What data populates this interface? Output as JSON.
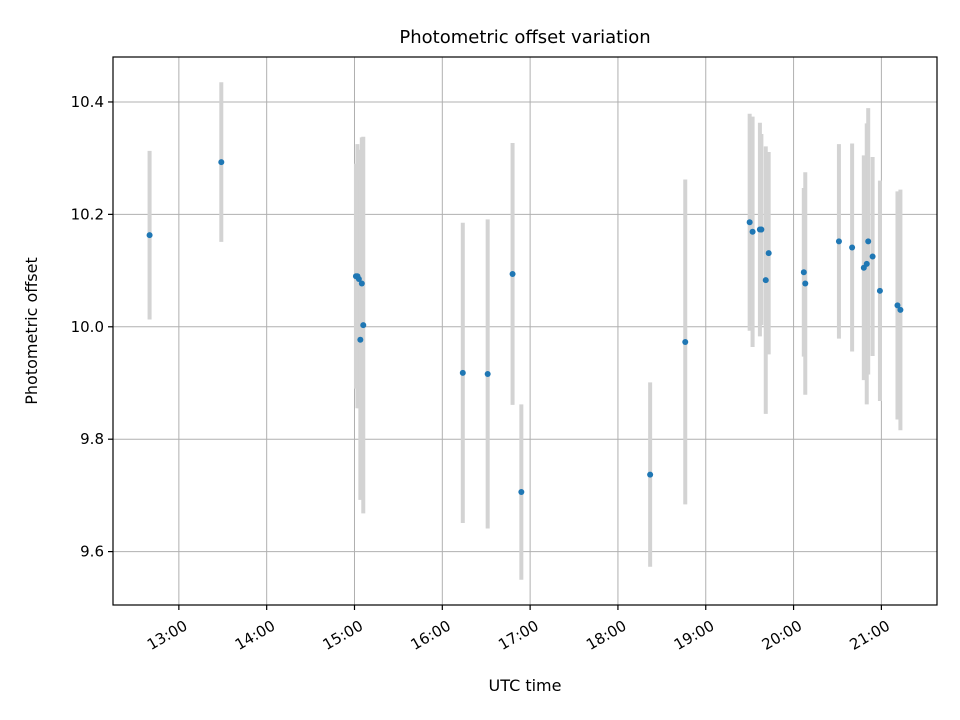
{
  "chart_data": {
    "type": "scatter",
    "title": "Photometric offset variation",
    "xlabel": "UTC time",
    "ylabel": "Photometric offset",
    "xlim": [
      "12:15",
      "21:38"
    ],
    "ylim": [
      9.505,
      10.48
    ],
    "grid": true,
    "x_ticks": [
      "13:00",
      "14:00",
      "15:00",
      "16:00",
      "17:00",
      "18:00",
      "19:00",
      "20:00",
      "21:00"
    ],
    "y_ticks": [
      9.6,
      9.8,
      10.0,
      10.2,
      10.4
    ],
    "y_tick_labels": [
      "9.6",
      "9.8",
      "10.0",
      "10.2",
      "10.4"
    ],
    "colors": {
      "point": "#1f77b4",
      "errorbar": "#d3d3d3",
      "grid": "#b0b0b0"
    },
    "series": [
      {
        "points": [
          {
            "x": "12:40",
            "y": 10.163,
            "err": 0.15
          },
          {
            "x": "13:29",
            "y": 10.293,
            "err": 0.142
          },
          {
            "x": "15:01",
            "y": 10.09,
            "err": 0.2
          },
          {
            "x": "15:02",
            "y": 10.09,
            "err": 0.235
          },
          {
            "x": "15:03",
            "y": 10.085,
            "err": 0.23
          },
          {
            "x": "15:04",
            "y": 9.977,
            "err": 0.285
          },
          {
            "x": "15:05",
            "y": 10.077,
            "err": 0.26
          },
          {
            "x": "15:06",
            "y": 10.003,
            "err": 0.335
          },
          {
            "x": "16:14",
            "y": 9.918,
            "err": 0.267
          },
          {
            "x": "16:31",
            "y": 9.916,
            "err": 0.275
          },
          {
            "x": "16:48",
            "y": 10.094,
            "err": 0.233
          },
          {
            "x": "16:54",
            "y": 9.706,
            "err": 0.156
          },
          {
            "x": "18:22",
            "y": 9.737,
            "err": 0.164
          },
          {
            "x": "18:46",
            "y": 9.973,
            "err": 0.289
          },
          {
            "x": "19:30",
            "y": 10.186,
            "err": 0.193
          },
          {
            "x": "19:32",
            "y": 10.169,
            "err": 0.205
          },
          {
            "x": "19:37",
            "y": 10.173,
            "err": 0.19
          },
          {
            "x": "19:38",
            "y": 10.173,
            "err": 0.17
          },
          {
            "x": "19:41",
            "y": 10.083,
            "err": 0.238
          },
          {
            "x": "19:43",
            "y": 10.131,
            "err": 0.18
          },
          {
            "x": "20:07",
            "y": 10.097,
            "err": 0.15
          },
          {
            "x": "20:08",
            "y": 10.077,
            "err": 0.198
          },
          {
            "x": "20:31",
            "y": 10.152,
            "err": 0.173
          },
          {
            "x": "20:40",
            "y": 10.141,
            "err": 0.185
          },
          {
            "x": "20:48",
            "y": 10.105,
            "err": 0.2
          },
          {
            "x": "20:50",
            "y": 10.112,
            "err": 0.25
          },
          {
            "x": "20:51",
            "y": 10.152,
            "err": 0.237
          },
          {
            "x": "20:54",
            "y": 10.125,
            "err": 0.177
          },
          {
            "x": "20:59",
            "y": 10.064,
            "err": 0.196
          },
          {
            "x": "21:11",
            "y": 10.038,
            "err": 0.203
          },
          {
            "x": "21:13",
            "y": 10.03,
            "err": 0.214
          }
        ]
      }
    ]
  }
}
